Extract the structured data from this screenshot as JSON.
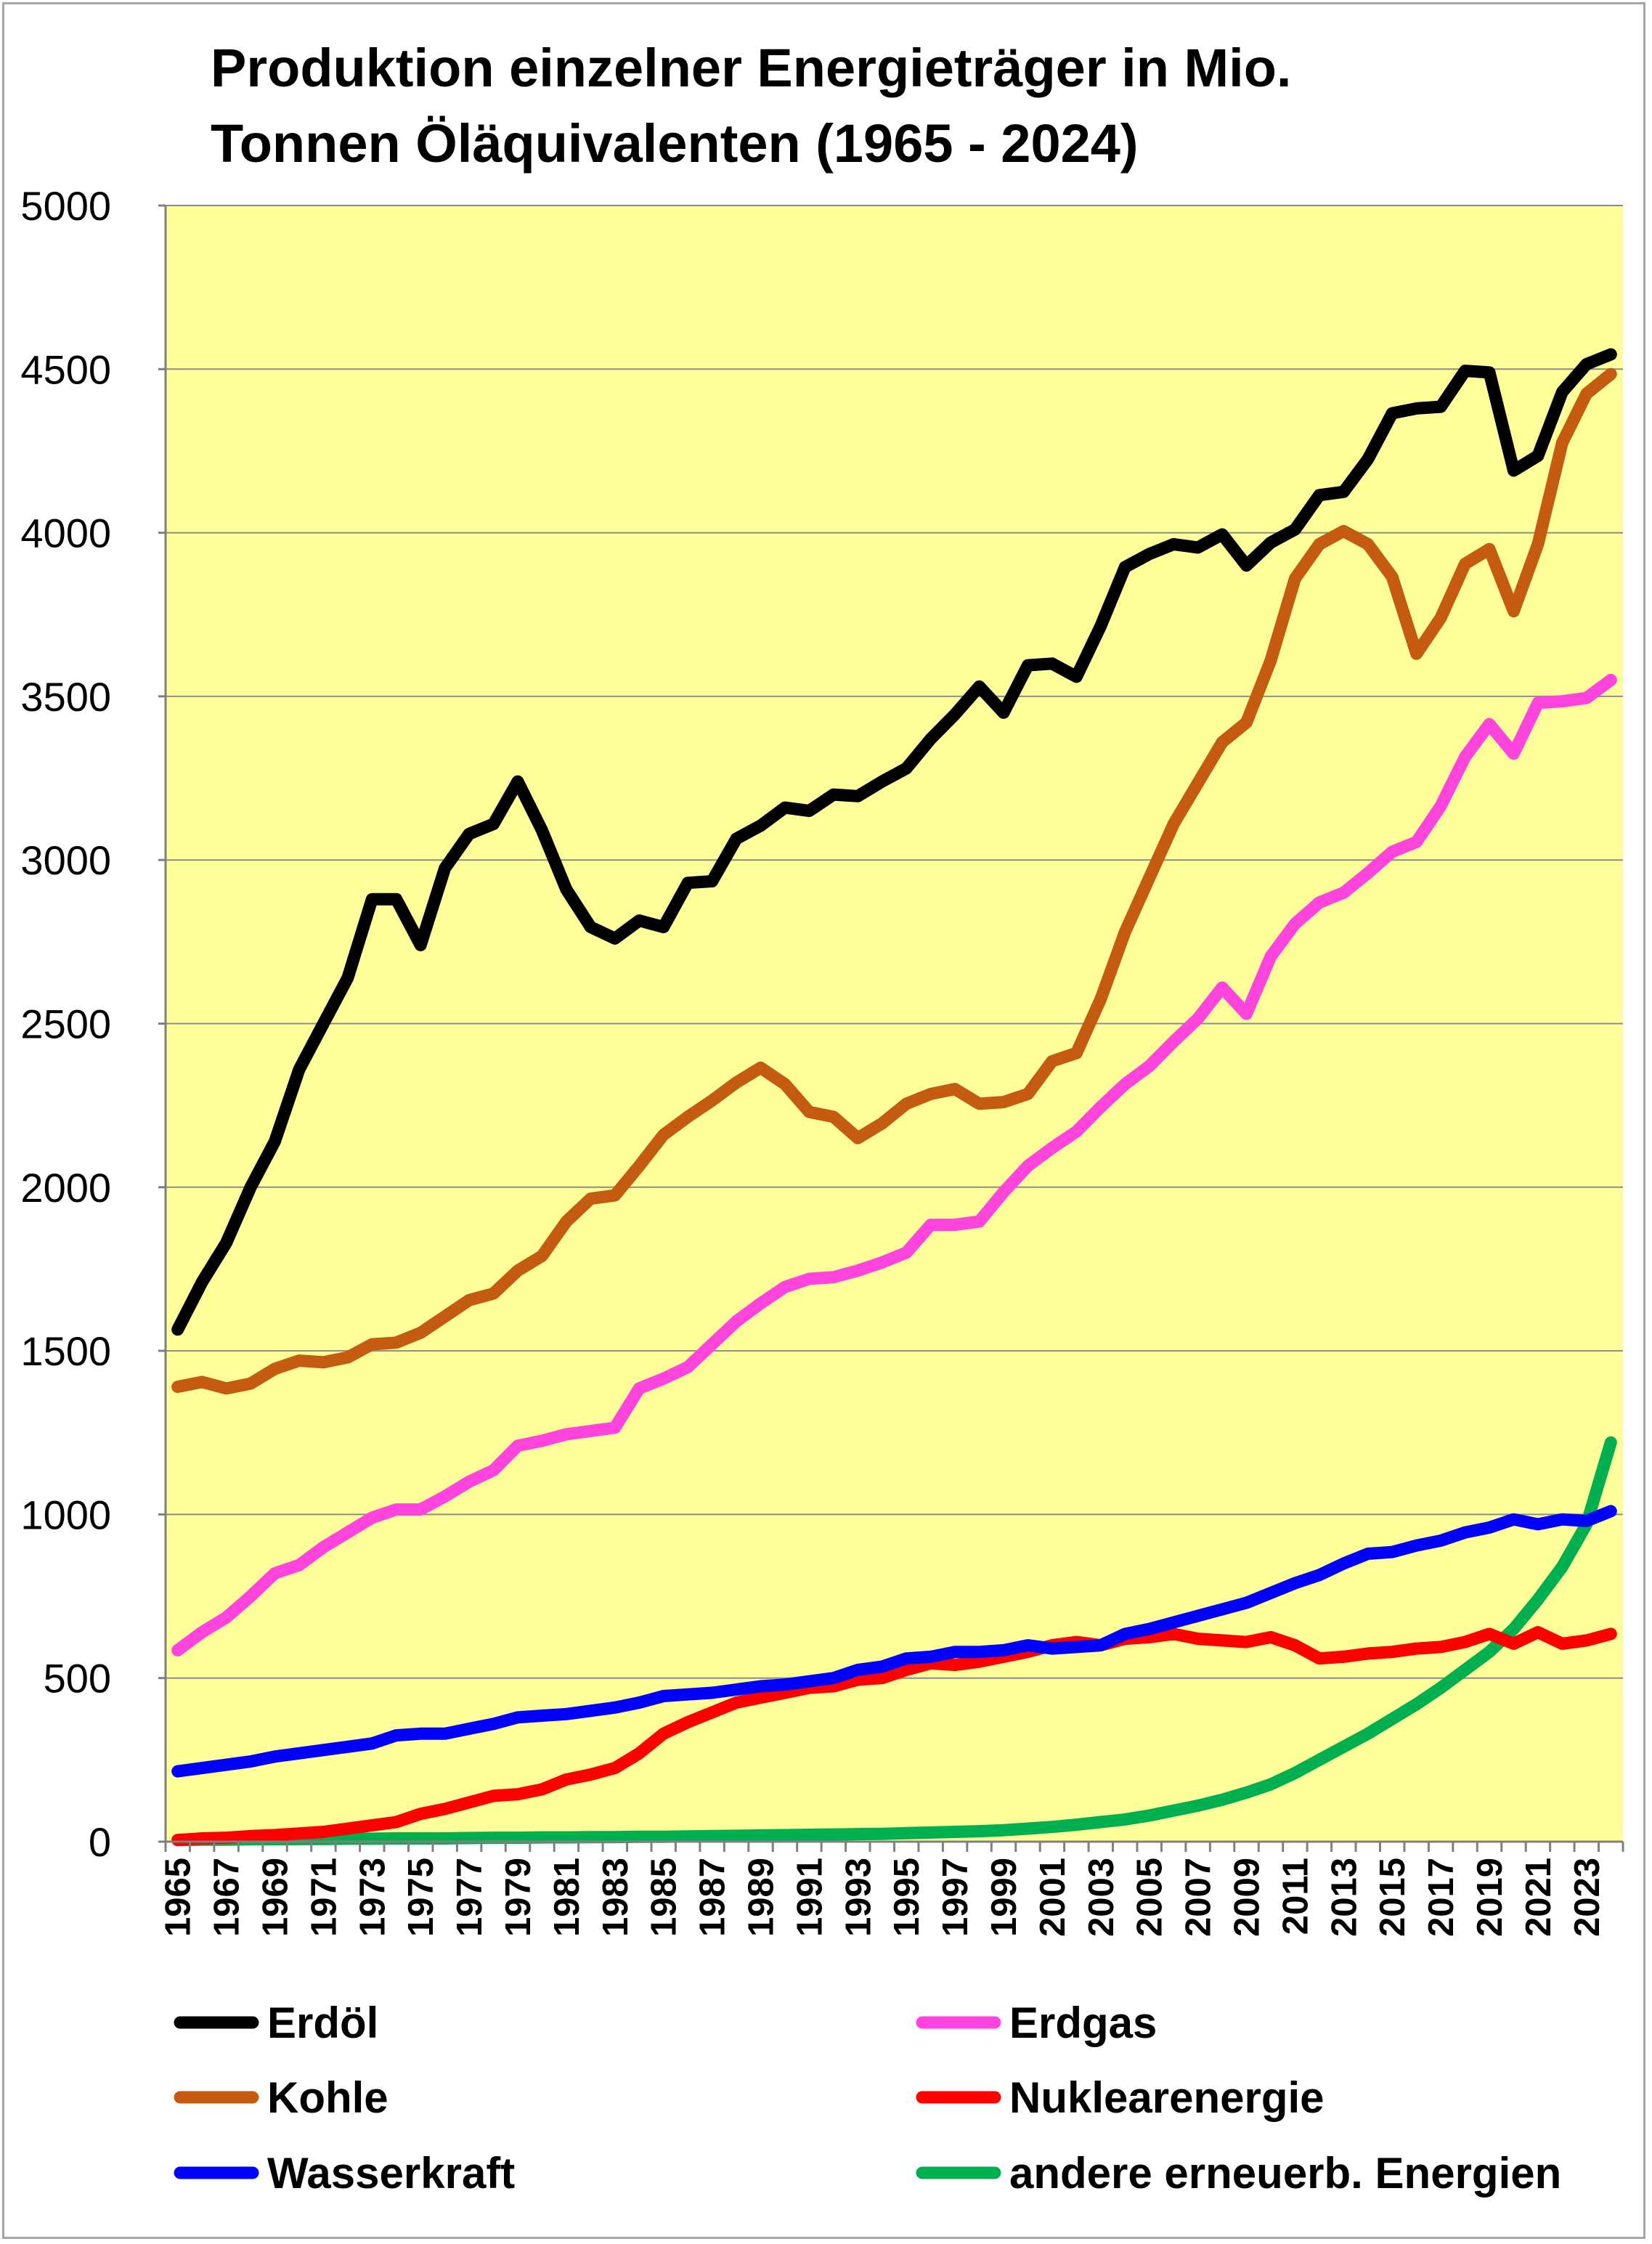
{
  "chart_data": {
    "type": "line",
    "title_lines": [
      "Produktion einzelner Energieträger in Mio.",
      "Tonnen Öläquivalenten (1965 - 2024)"
    ],
    "ylim": [
      0,
      5000
    ],
    "y_ticks": [
      0,
      500,
      1000,
      1500,
      2000,
      2500,
      3000,
      3500,
      4000,
      4500,
      5000
    ],
    "x_start": 1965,
    "x_end": 2024,
    "x_tick_labels": [
      "1965",
      "1967",
      "1969",
      "1971",
      "1973",
      "1975",
      "1977",
      "1979",
      "1981",
      "1983",
      "1985",
      "1987",
      "1989",
      "1991",
      "1993",
      "1995",
      "1997",
      "1999",
      "2001",
      "2003",
      "2005",
      "2007",
      "2009",
      "2011",
      "2013",
      "2015",
      "2017",
      "2019",
      "2021",
      "2023"
    ],
    "grid": "horizontal",
    "plot_background": "#ffff99",
    "legend_position": "bottom",
    "series": [
      {
        "name": "Erdöl",
        "color": "#000000",
        "values": [
          1565,
          1710,
          1830,
          2000,
          2140,
          2360,
          2500,
          2640,
          2880,
          2880,
          2740,
          2975,
          3080,
          3110,
          3240,
          3090,
          2910,
          2795,
          2760,
          2815,
          2795,
          2930,
          2935,
          3065,
          3105,
          3160,
          3150,
          3200,
          3195,
          3240,
          3280,
          3370,
          3445,
          3530,
          3450,
          3595,
          3600,
          3560,
          3715,
          3895,
          3935,
          3965,
          3955,
          3995,
          3900,
          3970,
          4010,
          4115,
          4125,
          4225,
          4365,
          4380,
          4385,
          4495,
          4490,
          4190,
          4235,
          4430,
          4515,
          4545
        ]
      },
      {
        "name": "Erdgas",
        "color": "#ff44dd",
        "values": [
          585,
          640,
          685,
          750,
          820,
          845,
          900,
          945,
          990,
          1015,
          1015,
          1055,
          1100,
          1135,
          1210,
          1225,
          1245,
          1255,
          1265,
          1385,
          1415,
          1450,
          1520,
          1590,
          1645,
          1695,
          1720,
          1725,
          1745,
          1770,
          1800,
          1885,
          1885,
          1895,
          1985,
          2065,
          2120,
          2170,
          2245,
          2315,
          2370,
          2445,
          2515,
          2610,
          2530,
          2705,
          2805,
          2870,
          2900,
          2960,
          3025,
          3055,
          3165,
          3315,
          3415,
          3325,
          3480,
          3485,
          3495,
          3550
        ]
      },
      {
        "name": "Kohle",
        "color": "#c55a11",
        "values": [
          1390,
          1405,
          1385,
          1400,
          1445,
          1470,
          1465,
          1480,
          1520,
          1525,
          1555,
          1605,
          1655,
          1675,
          1745,
          1790,
          1895,
          1965,
          1975,
          2065,
          2160,
          2215,
          2265,
          2320,
          2365,
          2315,
          2230,
          2215,
          2150,
          2195,
          2255,
          2285,
          2300,
          2255,
          2260,
          2285,
          2385,
          2410,
          2575,
          2780,
          2945,
          3110,
          3235,
          3360,
          3420,
          3610,
          3860,
          3965,
          4005,
          3965,
          3865,
          3630,
          3740,
          3905,
          3950,
          3760,
          3965,
          4275,
          4425,
          4485
        ]
      },
      {
        "name": "Nuklearenergie",
        "color": "#ff0000",
        "values": [
          5,
          10,
          12,
          17,
          20,
          25,
          30,
          40,
          50,
          60,
          85,
          100,
          120,
          140,
          145,
          160,
          190,
          205,
          225,
          270,
          330,
          365,
          395,
          425,
          440,
          455,
          470,
          475,
          495,
          500,
          525,
          545,
          540,
          550,
          565,
          580,
          600,
          610,
          600,
          620,
          625,
          635,
          620,
          615,
          610,
          625,
          600,
          560,
          565,
          575,
          580,
          590,
          595,
          610,
          635,
          605,
          640,
          605,
          615,
          635
        ]
      },
      {
        "name": "Wasserkraft",
        "color": "#0000ff",
        "values": [
          215,
          225,
          235,
          245,
          260,
          270,
          280,
          290,
          300,
          325,
          330,
          330,
          345,
          360,
          380,
          385,
          390,
          400,
          410,
          425,
          445,
          450,
          455,
          465,
          475,
          480,
          490,
          500,
          525,
          535,
          560,
          565,
          580,
          580,
          585,
          600,
          590,
          595,
          600,
          635,
          650,
          670,
          690,
          710,
          730,
          760,
          790,
          815,
          850,
          880,
          885,
          905,
          920,
          945,
          960,
          985,
          970,
          985,
          980,
          1010
        ]
      },
      {
        "name": "andere erneuerb. Energien",
        "color": "#00b050",
        "values": [
          5,
          6,
          6,
          7,
          7,
          8,
          8,
          9,
          9,
          10,
          10,
          10,
          11,
          12,
          12,
          13,
          13,
          14,
          14,
          15,
          15,
          16,
          17,
          18,
          19,
          20,
          21,
          22,
          23,
          24,
          26,
          28,
          30,
          32,
          35,
          40,
          45,
          52,
          60,
          68,
          80,
          95,
          110,
          128,
          150,
          175,
          210,
          250,
          290,
          330,
          375,
          420,
          470,
          525,
          580,
          650,
          740,
          840,
          970,
          1220
        ]
      }
    ]
  }
}
